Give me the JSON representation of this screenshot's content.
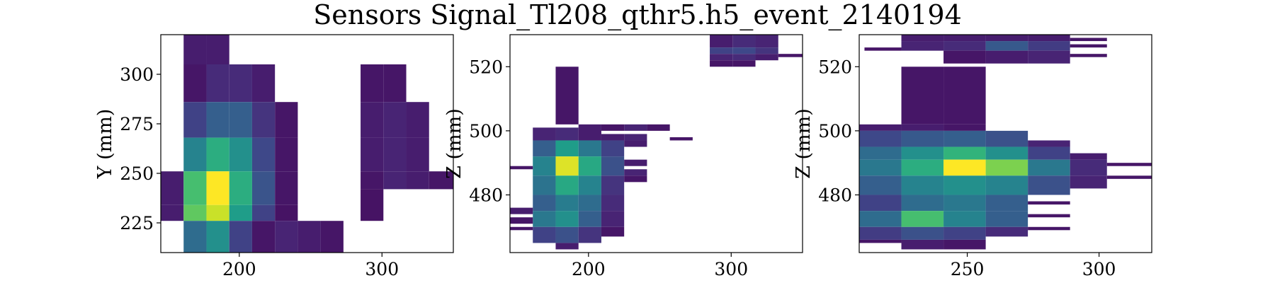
{
  "title": "Sensors Signal_Tl208_qthr5.h5_event_2140194",
  "colormap": "viridis",
  "chart_data": [
    {
      "type": "heatmap",
      "id": "xy",
      "xlabel": "",
      "ylabel": "Y (mm)",
      "xlim": [
        145,
        350
      ],
      "ylim": [
        210,
        320
      ],
      "xticks": [
        200,
        300
      ],
      "yticks": [
        225,
        250,
        275,
        300
      ],
      "cells": [
        [
          161,
          177,
          305,
          320,
          0.08
        ],
        [
          177,
          193,
          305,
          320,
          0.08
        ],
        [
          161,
          177,
          286,
          305,
          0.06
        ],
        [
          177,
          193,
          286,
          305,
          0.12
        ],
        [
          193,
          209,
          286,
          305,
          0.12
        ],
        [
          209,
          225,
          286,
          305,
          0.08
        ],
        [
          161,
          177,
          268,
          286,
          0.2
        ],
        [
          177,
          193,
          268,
          286,
          0.3
        ],
        [
          193,
          209,
          268,
          286,
          0.3
        ],
        [
          209,
          225,
          268,
          286,
          0.15
        ],
        [
          225,
          241,
          268,
          286,
          0.06
        ],
        [
          161,
          177,
          251,
          268,
          0.45
        ],
        [
          177,
          193,
          251,
          268,
          0.62
        ],
        [
          193,
          209,
          251,
          268,
          0.5
        ],
        [
          209,
          225,
          251,
          268,
          0.22
        ],
        [
          225,
          241,
          251,
          268,
          0.06
        ],
        [
          145,
          161,
          234,
          251,
          0.08
        ],
        [
          161,
          177,
          234,
          251,
          0.7
        ],
        [
          177,
          193,
          234,
          251,
          1.0
        ],
        [
          193,
          209,
          234,
          251,
          0.62
        ],
        [
          209,
          225,
          234,
          251,
          0.26
        ],
        [
          225,
          241,
          234,
          251,
          0.06
        ],
        [
          145,
          161,
          226,
          234,
          0.08
        ],
        [
          161,
          177,
          226,
          234,
          0.75
        ],
        [
          177,
          193,
          226,
          234,
          0.92
        ],
        [
          193,
          209,
          226,
          234,
          0.55
        ],
        [
          209,
          225,
          226,
          234,
          0.2
        ],
        [
          225,
          241,
          226,
          234,
          0.05
        ],
        [
          161,
          177,
          210,
          226,
          0.35
        ],
        [
          177,
          193,
          210,
          226,
          0.5
        ],
        [
          193,
          209,
          210,
          226,
          0.2
        ],
        [
          209,
          225,
          210,
          226,
          0.06
        ],
        [
          225,
          241,
          210,
          226,
          0.1
        ],
        [
          241,
          257,
          210,
          226,
          0.08
        ],
        [
          257,
          273,
          210,
          226,
          0.06
        ],
        [
          285,
          301,
          286,
          305,
          0.06
        ],
        [
          301,
          317,
          286,
          305,
          0.06
        ],
        [
          285,
          301,
          268,
          286,
          0.08
        ],
        [
          301,
          317,
          268,
          286,
          0.1
        ],
        [
          317,
          333,
          268,
          286,
          0.08
        ],
        [
          285,
          301,
          251,
          268,
          0.08
        ],
        [
          301,
          317,
          251,
          268,
          0.1
        ],
        [
          317,
          333,
          251,
          268,
          0.08
        ],
        [
          285,
          301,
          242,
          251,
          0.06
        ],
        [
          301,
          317,
          242,
          251,
          0.1
        ],
        [
          317,
          333,
          242,
          251,
          0.08
        ],
        [
          333,
          350,
          242,
          251,
          0.06
        ],
        [
          285,
          301,
          226,
          242,
          0.05
        ]
      ]
    },
    {
      "type": "heatmap",
      "id": "xz",
      "xlabel": "",
      "ylabel": "Z (mm)",
      "xlim": [
        145,
        350
      ],
      "ylim": [
        462,
        530
      ],
      "xticks": [
        200,
        300
      ],
      "yticks": [
        480,
        500,
        520
      ],
      "cells": [
        [
          177,
          193,
          502,
          520,
          0.06
        ],
        [
          161,
          177,
          497,
          501,
          0.1
        ],
        [
          177,
          193,
          497,
          501,
          0.12
        ],
        [
          193,
          209,
          497,
          502,
          0.08
        ],
        [
          161,
          177,
          492,
          497,
          0.3
        ],
        [
          177,
          193,
          492,
          497,
          0.55
        ],
        [
          193,
          209,
          492,
          497,
          0.4
        ],
        [
          209,
          225,
          492,
          497,
          0.2
        ],
        [
          161,
          177,
          486,
          492,
          0.45
        ],
        [
          177,
          193,
          486,
          492,
          0.95
        ],
        [
          193,
          209,
          486,
          492,
          0.6
        ],
        [
          209,
          225,
          486,
          492,
          0.25
        ],
        [
          161,
          177,
          480,
          486,
          0.38
        ],
        [
          177,
          193,
          480,
          486,
          0.6
        ],
        [
          193,
          209,
          480,
          486,
          0.45
        ],
        [
          209,
          225,
          480,
          486,
          0.15
        ],
        [
          161,
          177,
          475,
          480,
          0.3
        ],
        [
          177,
          193,
          475,
          480,
          0.42
        ],
        [
          193,
          209,
          475,
          480,
          0.35
        ],
        [
          209,
          225,
          475,
          480,
          0.12
        ],
        [
          161,
          177,
          470,
          475,
          0.4
        ],
        [
          177,
          193,
          470,
          475,
          0.5
        ],
        [
          193,
          209,
          470,
          475,
          0.3
        ],
        [
          209,
          225,
          470,
          475,
          0.1
        ],
        [
          161,
          177,
          465,
          470,
          0.2
        ],
        [
          177,
          193,
          465,
          470,
          0.25
        ],
        [
          193,
          209,
          465,
          470,
          0.15
        ],
        [
          209,
          225,
          467,
          470,
          0.06
        ],
        [
          177,
          193,
          463,
          465,
          0.08
        ],
        [
          145,
          161,
          488,
          489,
          0.06
        ],
        [
          145,
          161,
          474,
          476,
          0.08
        ],
        [
          145,
          161,
          471,
          473,
          0.06
        ],
        [
          145,
          161,
          469,
          470,
          0.06
        ],
        [
          209,
          225,
          500,
          502,
          0.06
        ],
        [
          225,
          241,
          500,
          502,
          0.1
        ],
        [
          241,
          257,
          500,
          502,
          0.06
        ],
        [
          209,
          225,
          497,
          499,
          0.08
        ],
        [
          225,
          241,
          497,
          499,
          0.1
        ],
        [
          257,
          273,
          497,
          498,
          0.06
        ],
        [
          225,
          241,
          495,
          497,
          0.08
        ],
        [
          225,
          241,
          489,
          491,
          0.08
        ],
        [
          225,
          241,
          486,
          488,
          0.1
        ],
        [
          225,
          241,
          484,
          486,
          0.06
        ],
        [
          285,
          301,
          526,
          530,
          0.08
        ],
        [
          301,
          317,
          526,
          530,
          0.12
        ],
        [
          317,
          333,
          526,
          530,
          0.1
        ],
        [
          285,
          301,
          524,
          526,
          0.2
        ],
        [
          301,
          317,
          524,
          526,
          0.22
        ],
        [
          317,
          333,
          524,
          526,
          0.15
        ],
        [
          285,
          301,
          522,
          524,
          0.1
        ],
        [
          301,
          317,
          522,
          524,
          0.12
        ],
        [
          317,
          333,
          522,
          524,
          0.08
        ],
        [
          333,
          350,
          523,
          524,
          0.06
        ],
        [
          285,
          301,
          520,
          522,
          0.06
        ],
        [
          301,
          317,
          520,
          522,
          0.06
        ]
      ]
    },
    {
      "type": "heatmap",
      "id": "yz",
      "xlabel": "",
      "ylabel": "Z (mm)",
      "xlim": [
        209,
        320
      ],
      "ylim": [
        462,
        530
      ],
      "xticks": [
        250,
        300
      ],
      "yticks": [
        480,
        500,
        520
      ],
      "cells": [
        [
          225,
          241,
          528,
          530,
          0.08
        ],
        [
          241,
          257,
          528,
          530,
          0.08
        ],
        [
          257,
          273,
          528,
          530,
          0.08
        ],
        [
          273,
          289,
          528,
          530,
          0.08
        ],
        [
          289,
          303,
          528,
          529,
          0.06
        ],
        [
          225,
          241,
          525,
          528,
          0.1
        ],
        [
          241,
          257,
          525,
          528,
          0.12
        ],
        [
          257,
          273,
          525,
          528,
          0.28
        ],
        [
          273,
          289,
          525,
          528,
          0.18
        ],
        [
          289,
          303,
          526,
          527,
          0.06
        ],
        [
          211,
          225,
          525,
          526,
          0.06
        ],
        [
          241,
          257,
          521,
          525,
          0.06
        ],
        [
          257,
          273,
          521,
          525,
          0.08
        ],
        [
          273,
          289,
          521,
          525,
          0.1
        ],
        [
          289,
          303,
          523,
          524,
          0.06
        ],
        [
          225,
          241,
          502,
          520,
          0.06
        ],
        [
          241,
          257,
          502,
          520,
          0.06
        ],
        [
          209,
          225,
          500,
          502,
          0.08
        ],
        [
          225,
          241,
          500,
          502,
          0.08
        ],
        [
          241,
          257,
          500,
          502,
          0.06
        ],
        [
          209,
          225,
          495,
          500,
          0.22
        ],
        [
          225,
          241,
          495,
          500,
          0.28
        ],
        [
          241,
          257,
          495,
          500,
          0.3
        ],
        [
          257,
          273,
          495,
          500,
          0.25
        ],
        [
          273,
          289,
          495,
          497,
          0.1
        ],
        [
          209,
          225,
          491,
          495,
          0.35
        ],
        [
          225,
          241,
          491,
          495,
          0.5
        ],
        [
          241,
          257,
          491,
          495,
          0.65
        ],
        [
          257,
          273,
          491,
          495,
          0.5
        ],
        [
          273,
          289,
          491,
          495,
          0.2
        ],
        [
          289,
          303,
          491,
          493,
          0.08
        ],
        [
          209,
          225,
          486,
          491,
          0.4
        ],
        [
          225,
          241,
          486,
          491,
          0.62
        ],
        [
          241,
          257,
          486,
          491,
          1.0
        ],
        [
          257,
          273,
          486,
          491,
          0.8
        ],
        [
          273,
          289,
          486,
          491,
          0.4
        ],
        [
          289,
          303,
          486,
          491,
          0.12
        ],
        [
          209,
          225,
          480,
          486,
          0.3
        ],
        [
          225,
          241,
          480,
          486,
          0.45
        ],
        [
          241,
          257,
          480,
          486,
          0.5
        ],
        [
          257,
          273,
          480,
          486,
          0.45
        ],
        [
          273,
          289,
          480,
          486,
          0.25
        ],
        [
          289,
          303,
          482,
          486,
          0.1
        ],
        [
          209,
          225,
          475,
          480,
          0.2
        ],
        [
          225,
          241,
          475,
          480,
          0.35
        ],
        [
          241,
          257,
          475,
          480,
          0.4
        ],
        [
          257,
          273,
          475,
          480,
          0.3
        ],
        [
          273,
          289,
          477,
          478,
          0.06
        ],
        [
          209,
          225,
          470,
          475,
          0.35
        ],
        [
          225,
          241,
          470,
          475,
          0.7
        ],
        [
          241,
          257,
          470,
          475,
          0.45
        ],
        [
          257,
          273,
          470,
          475,
          0.3
        ],
        [
          273,
          289,
          473,
          474,
          0.06
        ],
        [
          209,
          225,
          466,
          470,
          0.18
        ],
        [
          225,
          241,
          466,
          470,
          0.25
        ],
        [
          241,
          257,
          466,
          470,
          0.2
        ],
        [
          257,
          273,
          467,
          470,
          0.12
        ],
        [
          273,
          289,
          469,
          470,
          0.06
        ],
        [
          209,
          225,
          465,
          466,
          0.06
        ],
        [
          225,
          241,
          463,
          466,
          0.08
        ],
        [
          241,
          257,
          463,
          466,
          0.06
        ],
        [
          303,
          320,
          489,
          490,
          0.06
        ],
        [
          303,
          320,
          485,
          486,
          0.06
        ]
      ]
    }
  ]
}
